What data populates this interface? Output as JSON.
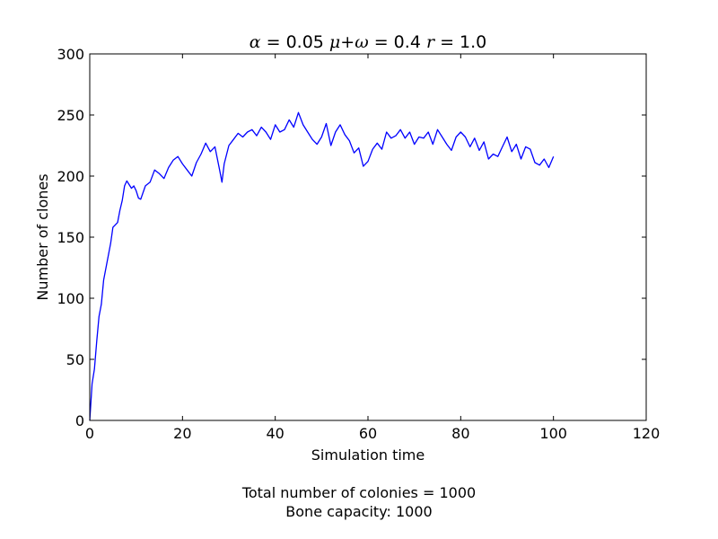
{
  "chart_data": {
    "type": "line",
    "title": "α = 0.05 μ+ω = 0.4 r = 1.0",
    "title_parts": {
      "alpha_symbol": "α",
      "alpha_value": " = 0.05 ",
      "mu_omega_symbol": "μ+ω",
      "mu_omega_value": " = 0.4 ",
      "r_symbol": "r",
      "r_value": " = 1.0"
    },
    "xlabel": "Simulation time",
    "ylabel": "Number of clones",
    "xlim": [
      0,
      120
    ],
    "ylim": [
      0,
      300
    ],
    "xticks": [
      0,
      20,
      40,
      60,
      80,
      100,
      120
    ],
    "yticks": [
      0,
      50,
      100,
      150,
      200,
      250,
      300
    ],
    "grid": false,
    "series": [
      {
        "color": "#0000ff",
        "x": [
          0,
          0.5,
          1,
          1.5,
          2,
          2.5,
          3,
          3.5,
          4,
          4.5,
          5,
          5.5,
          6,
          6.5,
          7,
          7.5,
          8,
          8.5,
          9,
          9.5,
          10,
          10.5,
          11,
          12,
          13,
          14,
          15,
          16,
          17,
          18,
          19,
          20,
          21,
          22,
          23,
          24,
          25,
          26,
          27,
          28,
          28.5,
          29,
          30,
          31,
          32,
          33,
          34,
          35,
          36,
          37,
          38,
          39,
          40,
          41,
          42,
          43,
          44,
          45,
          46,
          47,
          48,
          49,
          50,
          51,
          52,
          53,
          54,
          55,
          56,
          57,
          58,
          59,
          60,
          61,
          62,
          63,
          64,
          65,
          66,
          67,
          68,
          69,
          70,
          71,
          72,
          73,
          74,
          75,
          76,
          77,
          78,
          79,
          80,
          81,
          82,
          83,
          84,
          85,
          86,
          87,
          88,
          89,
          90,
          91,
          92,
          93,
          94,
          95,
          96,
          97,
          98,
          99,
          100
        ],
        "values": [
          0,
          30,
          42,
          65,
          85,
          95,
          115,
          125,
          135,
          145,
          158,
          160,
          162,
          172,
          180,
          192,
          196,
          193,
          190,
          192,
          188,
          182,
          181,
          192,
          195,
          205,
          202,
          198,
          207,
          213,
          216,
          210,
          205,
          200,
          211,
          218,
          227,
          220,
          224,
          205,
          195,
          210,
          225,
          230,
          235,
          232,
          236,
          238,
          233,
          240,
          236,
          230,
          242,
          236,
          238,
          246,
          240,
          252,
          242,
          236,
          230,
          226,
          232,
          243,
          225,
          236,
          242,
          234,
          229,
          219,
          223,
          208,
          212,
          222,
          227,
          222,
          236,
          231,
          233,
          238,
          231,
          236,
          226,
          232,
          231,
          236,
          226,
          238,
          232,
          226,
          221,
          232,
          236,
          232,
          224,
          231,
          221,
          228,
          214,
          218,
          216,
          224,
          232,
          220,
          226,
          214,
          224,
          222,
          211,
          209,
          214,
          207,
          216
        ]
      }
    ]
  },
  "caption": {
    "line1": "Total number of colonies = 1000",
    "line2": "Bone capacity: 1000"
  }
}
